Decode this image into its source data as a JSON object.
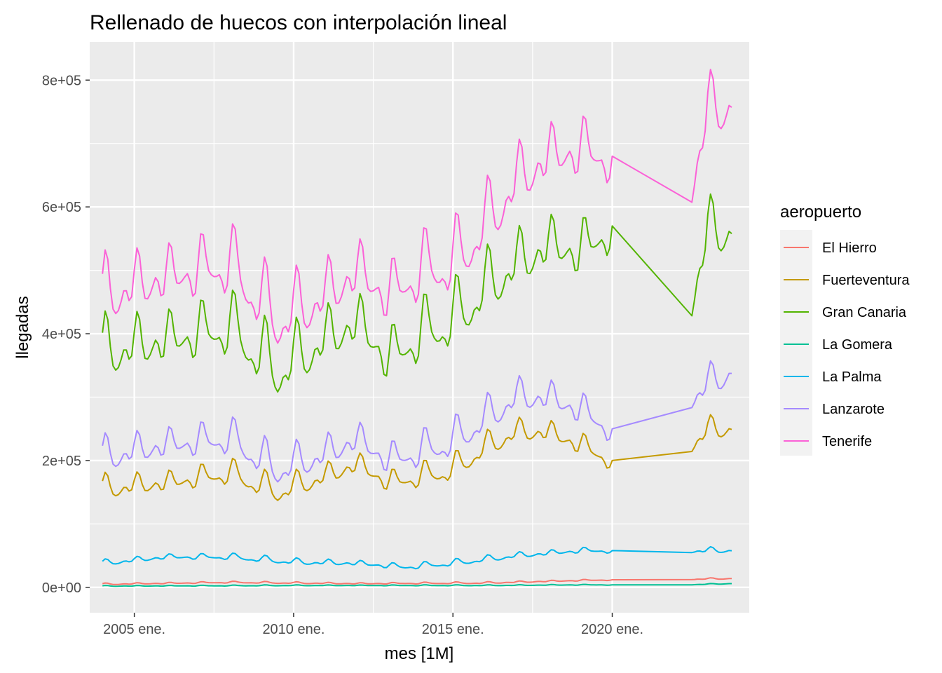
{
  "chart_data": {
    "type": "line",
    "title": "Rellenado de huecos con interpolación lineal",
    "xlabel": "mes [1M]",
    "ylabel": "llegadas",
    "x_start": "2004-01",
    "x_end": "2023-10",
    "xlim": [
      2003.6,
      2024.3
    ],
    "ylim": [
      -40000,
      860000
    ],
    "x_ticks": [
      {
        "value": 2005,
        "label": "2005 ene."
      },
      {
        "value": 2010,
        "label": "2010 ene."
      },
      {
        "value": 2015,
        "label": "2015 ene."
      },
      {
        "value": 2020,
        "label": "2020 ene."
      }
    ],
    "y_ticks": [
      {
        "value": 0,
        "label": "0e+00"
      },
      {
        "value": 200000,
        "label": "2e+05"
      },
      {
        "value": 400000,
        "label": "4e+05"
      },
      {
        "value": 600000,
        "label": "6e+05"
      },
      {
        "value": 800000,
        "label": "8e+05"
      }
    ],
    "legend_title": "aeropuerto",
    "legend_position": "right",
    "series": [
      {
        "name": "El Hierro",
        "color": "#F8766D",
        "trend": [
          [
            2004,
            5000
          ],
          [
            2008,
            8000
          ],
          [
            2012,
            6000
          ],
          [
            2016,
            7000
          ],
          [
            2019,
            11000
          ],
          [
            2020,
            12000
          ],
          [
            2022.5,
            13000
          ],
          [
            2023.8,
            14000
          ]
        ],
        "amplitude": 1500,
        "interpolate": [
          2020,
          2022.5
        ]
      },
      {
        "name": "Fuerteventura",
        "color": "#C49A00",
        "trend": [
          [
            2004,
            155000
          ],
          [
            2006,
            165000
          ],
          [
            2008,
            180000
          ],
          [
            2009.5,
            150000
          ],
          [
            2011,
            175000
          ],
          [
            2012,
            195000
          ],
          [
            2013,
            165000
          ],
          [
            2014,
            175000
          ],
          [
            2015,
            185000
          ],
          [
            2016,
            220000
          ],
          [
            2017,
            245000
          ],
          [
            2018,
            245000
          ],
          [
            2019,
            225000
          ],
          [
            2020,
            200000
          ],
          [
            2022.5,
            227000
          ],
          [
            2023,
            248000
          ],
          [
            2023.8,
            250000
          ]
        ],
        "amplitude": 22000,
        "interpolate": [
          2020,
          2022.5
        ]
      },
      {
        "name": "Gran Canaria",
        "color": "#53B400",
        "trend": [
          [
            2004,
            370000
          ],
          [
            2006,
            390000
          ],
          [
            2008,
            410000
          ],
          [
            2009.5,
            340000
          ],
          [
            2011,
            390000
          ],
          [
            2012,
            420000
          ],
          [
            2013,
            360000
          ],
          [
            2014,
            400000
          ],
          [
            2015,
            420000
          ],
          [
            2016,
            470000
          ],
          [
            2017,
            510000
          ],
          [
            2018,
            540000
          ],
          [
            2019,
            530000
          ],
          [
            2020,
            570000
          ],
          [
            2022.5,
            460000
          ],
          [
            2023,
            560000
          ],
          [
            2023.8,
            560000
          ]
        ],
        "amplitude": 55000,
        "interpolate": [
          2020,
          2022.5
        ]
      },
      {
        "name": "La Gomera",
        "color": "#00C094",
        "trend": [
          [
            2004,
            2000
          ],
          [
            2010,
            3000
          ],
          [
            2016,
            3000
          ],
          [
            2019,
            4000
          ],
          [
            2020,
            4000
          ],
          [
            2022.5,
            4500
          ],
          [
            2023.8,
            6000
          ]
        ],
        "amplitude": 800,
        "interpolate": [
          2020,
          2022.5
        ]
      },
      {
        "name": "La Palma",
        "color": "#00B6EB",
        "trend": [
          [
            2004,
            38000
          ],
          [
            2006,
            48000
          ],
          [
            2008,
            48000
          ],
          [
            2010,
            40000
          ],
          [
            2012,
            38000
          ],
          [
            2013.5,
            32000
          ],
          [
            2015,
            38000
          ],
          [
            2017,
            50000
          ],
          [
            2019,
            58000
          ],
          [
            2020,
            58000
          ],
          [
            2022.5,
            58000
          ],
          [
            2023.8,
            58000
          ]
        ],
        "amplitude": 5500,
        "interpolate": [
          2020,
          2022.5
        ]
      },
      {
        "name": "Lanzarote",
        "color": "#A58AFF",
        "trend": [
          [
            2004,
            205000
          ],
          [
            2006,
            225000
          ],
          [
            2008,
            235000
          ],
          [
            2009.5,
            185000
          ],
          [
            2011,
            210000
          ],
          [
            2012,
            235000
          ],
          [
            2013,
            200000
          ],
          [
            2014,
            215000
          ],
          [
            2015,
            230000
          ],
          [
            2016,
            265000
          ],
          [
            2017,
            300000
          ],
          [
            2018,
            300000
          ],
          [
            2019,
            280000
          ],
          [
            2020,
            250000
          ],
          [
            2022.5,
            302000
          ],
          [
            2023,
            320000
          ],
          [
            2023.8,
            340000
          ]
        ],
        "amplitude": 32000,
        "interpolate": [
          2020,
          2022.5
        ]
      },
      {
        "name": "Tenerife",
        "color": "#FB61D7",
        "trend": [
          [
            2004,
            460000
          ],
          [
            2006,
            490000
          ],
          [
            2008,
            510000
          ],
          [
            2009.5,
            420000
          ],
          [
            2011,
            460000
          ],
          [
            2012,
            500000
          ],
          [
            2013,
            460000
          ],
          [
            2014,
            500000
          ],
          [
            2015,
            510000
          ],
          [
            2016,
            570000
          ],
          [
            2017,
            640000
          ],
          [
            2018,
            680000
          ],
          [
            2019,
            690000
          ],
          [
            2020,
            680000
          ],
          [
            2022.5,
            642000
          ],
          [
            2023,
            750000
          ],
          [
            2023.8,
            760000
          ]
        ],
        "amplitude": 60000,
        "interpolate": [
          2020,
          2022.5
        ]
      }
    ]
  }
}
